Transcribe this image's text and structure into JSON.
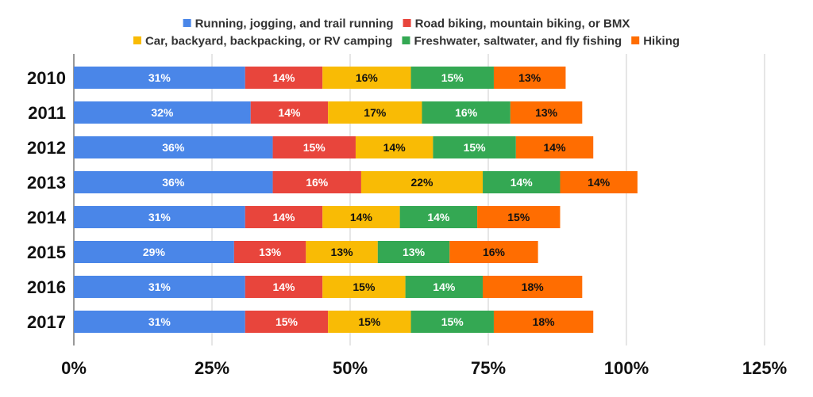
{
  "chart_data": {
    "type": "bar",
    "orientation": "horizontal",
    "stacked": true,
    "title": "",
    "xlabel": "",
    "ylabel": "",
    "categories": [
      "2010",
      "2011",
      "2012",
      "2013",
      "2014",
      "2015",
      "2016",
      "2017"
    ],
    "series": [
      {
        "name": "Running, jogging, and trail running",
        "color": "#4a86e8",
        "label_color": "#ffffff",
        "values": [
          31,
          32,
          36,
          36,
          31,
          29,
          31,
          31
        ]
      },
      {
        "name": "Road biking, mountain biking, or BMX",
        "color": "#e8453c",
        "label_color": "#ffffff",
        "values": [
          14,
          14,
          15,
          16,
          14,
          13,
          14,
          15
        ]
      },
      {
        "name": "Car, backyard, backpacking, or RV camping",
        "color": "#f9bb05",
        "label_color": "#111111",
        "values": [
          16,
          17,
          14,
          22,
          14,
          13,
          15,
          15
        ]
      },
      {
        "name": "Freshwater, saltwater, and fly fishing",
        "color": "#34a853",
        "label_color": "#ffffff",
        "values": [
          15,
          16,
          15,
          14,
          14,
          13,
          14,
          15
        ]
      },
      {
        "name": "Hiking",
        "color": "#ff6d01",
        "label_color": "#111111",
        "values": [
          13,
          13,
          14,
          14,
          15,
          16,
          18,
          18
        ]
      }
    ],
    "data_labels": [
      [
        "31%",
        "14%",
        "16%",
        "15%",
        "13%"
      ],
      [
        "32%",
        "14%",
        "17%",
        "16%",
        "13%"
      ],
      [
        "36%",
        "15%",
        "14%",
        "15%",
        "14%"
      ],
      [
        "36%",
        "16%",
        "22%",
        "14%",
        "14%"
      ],
      [
        "31%",
        "14%",
        "14%",
        "14%",
        "15%"
      ],
      [
        "29%",
        "13%",
        "13%",
        "13%",
        "16%"
      ],
      [
        "31%",
        "14%",
        "15%",
        "14%",
        "18%"
      ],
      [
        "31%",
        "15%",
        "15%",
        "15%",
        "18%"
      ]
    ],
    "xlim": [
      0,
      125
    ],
    "x_ticks": [
      0,
      25,
      50,
      75,
      100,
      125
    ],
    "x_tick_labels": [
      "0%",
      "25%",
      "50%",
      "75%",
      "100%",
      "125%"
    ],
    "grid": true,
    "gridline_color": "#cccccc",
    "legend_position": "top"
  }
}
